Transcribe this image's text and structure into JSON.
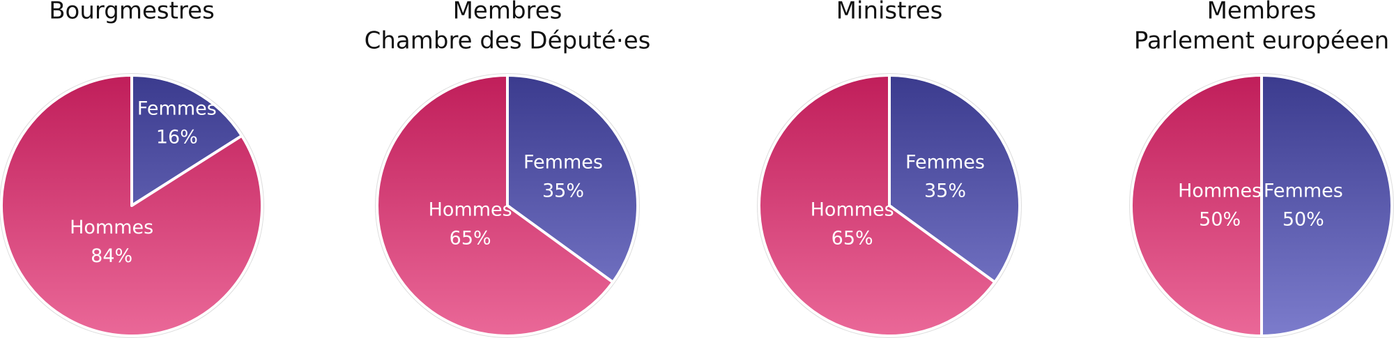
{
  "chart_data": [
    {
      "type": "pie",
      "title": [
        "Bourgmestres"
      ],
      "categories": [
        "Femmes",
        "Hommes"
      ],
      "values": [
        16,
        84
      ],
      "value_labels": [
        "16%",
        "84%"
      ],
      "gradients": [
        [
          "#3b3b8e",
          "#7c7ccc"
        ],
        [
          "#c01e5a",
          "#ea6898"
        ]
      ]
    },
    {
      "type": "pie",
      "title": [
        "Membres",
        "Chambre des Député·es"
      ],
      "categories": [
        "Femmes",
        "Hommes"
      ],
      "values": [
        35,
        65
      ],
      "value_labels": [
        "35%",
        "65%"
      ],
      "gradients": [
        [
          "#3b3b8e",
          "#7c7ccc"
        ],
        [
          "#c01e5a",
          "#ea6898"
        ]
      ]
    },
    {
      "type": "pie",
      "title": [
        "Ministres"
      ],
      "categories": [
        "Femmes",
        "Hommes"
      ],
      "values": [
        35,
        65
      ],
      "value_labels": [
        "35%",
        "65%"
      ],
      "gradients": [
        [
          "#3b3b8e",
          "#7c7ccc"
        ],
        [
          "#c01e5a",
          "#ea6898"
        ]
      ]
    },
    {
      "type": "pie",
      "title": [
        "Membres",
        "Parlement européeen"
      ],
      "categories": [
        "Femmes",
        "Hommes"
      ],
      "values": [
        50,
        50
      ],
      "value_labels": [
        "50%",
        "50%"
      ],
      "gradients": [
        [
          "#3b3b8e",
          "#7c7ccc"
        ],
        [
          "#c01e5a",
          "#ea6898"
        ]
      ]
    }
  ]
}
